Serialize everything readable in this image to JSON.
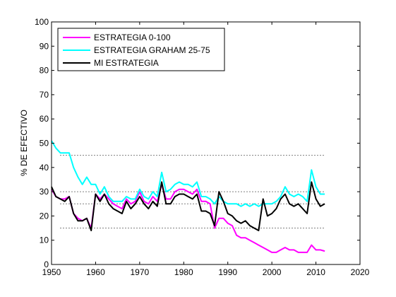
{
  "chart_data": {
    "type": "line",
    "title": "",
    "xlabel": "",
    "ylabel": "% DE EFECTIVO",
    "xlim": [
      1950,
      2020
    ],
    "ylim": [
      0,
      100
    ],
    "xticks": [
      1950,
      1960,
      1970,
      1980,
      1990,
      2000,
      2010,
      2020
    ],
    "yticks": [
      0,
      10,
      20,
      30,
      40,
      50,
      60,
      70,
      80,
      90,
      100
    ],
    "legend_position": "top-left",
    "reference_lines": [
      15,
      25,
      30,
      45
    ],
    "series": [
      {
        "name": "ESTRATEGIA 0-100",
        "color": "#ff00ff",
        "points": [
          [
            1950,
            31
          ],
          [
            1951,
            28
          ],
          [
            1952,
            27
          ],
          [
            1953,
            27
          ],
          [
            1954,
            28
          ],
          [
            1955,
            21
          ],
          [
            1956,
            19
          ],
          [
            1957,
            18
          ],
          [
            1958,
            19
          ],
          [
            1959,
            15
          ],
          [
            1960,
            29
          ],
          [
            1961,
            27
          ],
          [
            1962,
            29
          ],
          [
            1963,
            27
          ],
          [
            1964,
            25
          ],
          [
            1965,
            24
          ],
          [
            1966,
            23
          ],
          [
            1967,
            27
          ],
          [
            1968,
            25
          ],
          [
            1969,
            26
          ],
          [
            1970,
            30
          ],
          [
            1971,
            26
          ],
          [
            1972,
            25
          ],
          [
            1973,
            28
          ],
          [
            1974,
            26
          ],
          [
            1975,
            33
          ],
          [
            1976,
            27
          ],
          [
            1977,
            27
          ],
          [
            1978,
            30
          ],
          [
            1979,
            31
          ],
          [
            1980,
            31
          ],
          [
            1981,
            30
          ],
          [
            1982,
            29
          ],
          [
            1983,
            31
          ],
          [
            1984,
            26
          ],
          [
            1985,
            26
          ],
          [
            1986,
            25
          ],
          [
            1987,
            15
          ],
          [
            1988,
            19
          ],
          [
            1989,
            19
          ],
          [
            1990,
            17
          ],
          [
            1991,
            16
          ],
          [
            1992,
            12
          ],
          [
            1993,
            11
          ],
          [
            1994,
            11
          ],
          [
            1995,
            10
          ],
          [
            1996,
            9
          ],
          [
            1997,
            8
          ],
          [
            1998,
            7
          ],
          [
            1999,
            6
          ],
          [
            2000,
            5
          ],
          [
            2001,
            5
          ],
          [
            2002,
            6
          ],
          [
            2003,
            7
          ],
          [
            2004,
            6
          ],
          [
            2005,
            6
          ],
          [
            2006,
            5
          ],
          [
            2007,
            5
          ],
          [
            2008,
            5
          ],
          [
            2009,
            8
          ],
          [
            2010,
            6
          ],
          [
            2011,
            6
          ],
          [
            2012,
            5.5
          ]
        ]
      },
      {
        "name": "ESTRATEGIA GRAHAM 25-75",
        "color": "#00ffff",
        "points": [
          [
            1950,
            51
          ],
          [
            1951,
            48
          ],
          [
            1952,
            46
          ],
          [
            1953,
            46
          ],
          [
            1954,
            46
          ],
          [
            1955,
            40
          ],
          [
            1956,
            36
          ],
          [
            1957,
            33
          ],
          [
            1958,
            36
          ],
          [
            1959,
            33
          ],
          [
            1960,
            33
          ],
          [
            1961,
            29
          ],
          [
            1962,
            32
          ],
          [
            1963,
            28
          ],
          [
            1964,
            26
          ],
          [
            1965,
            26
          ],
          [
            1966,
            26
          ],
          [
            1967,
            28
          ],
          [
            1968,
            27
          ],
          [
            1969,
            27
          ],
          [
            1970,
            31
          ],
          [
            1971,
            28
          ],
          [
            1972,
            27
          ],
          [
            1973,
            30
          ],
          [
            1974,
            28
          ],
          [
            1975,
            38
          ],
          [
            1976,
            30
          ],
          [
            1977,
            31
          ],
          [
            1978,
            33
          ],
          [
            1979,
            34
          ],
          [
            1980,
            33
          ],
          [
            1981,
            33
          ],
          [
            1982,
            32
          ],
          [
            1983,
            34
          ],
          [
            1984,
            28
          ],
          [
            1985,
            28
          ],
          [
            1986,
            27
          ],
          [
            1987,
            25
          ],
          [
            1988,
            28
          ],
          [
            1989,
            26
          ],
          [
            1990,
            25
          ],
          [
            1991,
            25
          ],
          [
            1992,
            25
          ],
          [
            1993,
            24
          ],
          [
            1994,
            25
          ],
          [
            1995,
            24
          ],
          [
            1996,
            25
          ],
          [
            1997,
            24
          ],
          [
            1998,
            25
          ],
          [
            1999,
            25
          ],
          [
            2000,
            25
          ],
          [
            2001,
            26
          ],
          [
            2002,
            28
          ],
          [
            2003,
            32
          ],
          [
            2004,
            29
          ],
          [
            2005,
            28
          ],
          [
            2006,
            29
          ],
          [
            2007,
            28
          ],
          [
            2008,
            26
          ],
          [
            2009,
            39
          ],
          [
            2010,
            32
          ],
          [
            2011,
            29
          ],
          [
            2012,
            29
          ]
        ]
      },
      {
        "name": "MI ESTRATEGIA",
        "color": "#000000",
        "points": [
          [
            1950,
            32
          ],
          [
            1951,
            28
          ],
          [
            1952,
            27
          ],
          [
            1953,
            26
          ],
          [
            1954,
            28
          ],
          [
            1955,
            21
          ],
          [
            1956,
            18
          ],
          [
            1957,
            18
          ],
          [
            1958,
            19
          ],
          [
            1959,
            14
          ],
          [
            1960,
            29
          ],
          [
            1961,
            26
          ],
          [
            1962,
            29
          ],
          [
            1963,
            25
          ],
          [
            1964,
            23
          ],
          [
            1965,
            22
          ],
          [
            1966,
            21
          ],
          [
            1967,
            26
          ],
          [
            1968,
            23
          ],
          [
            1969,
            25
          ],
          [
            1970,
            28
          ],
          [
            1971,
            25
          ],
          [
            1972,
            23
          ],
          [
            1973,
            26
          ],
          [
            1974,
            24
          ],
          [
            1975,
            34
          ],
          [
            1976,
            25
          ],
          [
            1977,
            25
          ],
          [
            1978,
            28
          ],
          [
            1979,
            29
          ],
          [
            1980,
            29
          ],
          [
            1981,
            28
          ],
          [
            1982,
            27
          ],
          [
            1983,
            29
          ],
          [
            1984,
            22
          ],
          [
            1985,
            22
          ],
          [
            1986,
            21
          ],
          [
            1987,
            16
          ],
          [
            1988,
            30
          ],
          [
            1989,
            26
          ],
          [
            1990,
            21
          ],
          [
            1991,
            20
          ],
          [
            1992,
            18
          ],
          [
            1993,
            17
          ],
          [
            1994,
            18
          ],
          [
            1995,
            16
          ],
          [
            1996,
            15
          ],
          [
            1997,
            14
          ],
          [
            1998,
            27
          ],
          [
            1999,
            20
          ],
          [
            2000,
            21
          ],
          [
            2001,
            23
          ],
          [
            2002,
            27
          ],
          [
            2003,
            29
          ],
          [
            2004,
            25
          ],
          [
            2005,
            24
          ],
          [
            2006,
            25
          ],
          [
            2007,
            23
          ],
          [
            2008,
            21
          ],
          [
            2009,
            34
          ],
          [
            2010,
            27
          ],
          [
            2011,
            24
          ],
          [
            2012,
            25
          ]
        ]
      }
    ]
  }
}
